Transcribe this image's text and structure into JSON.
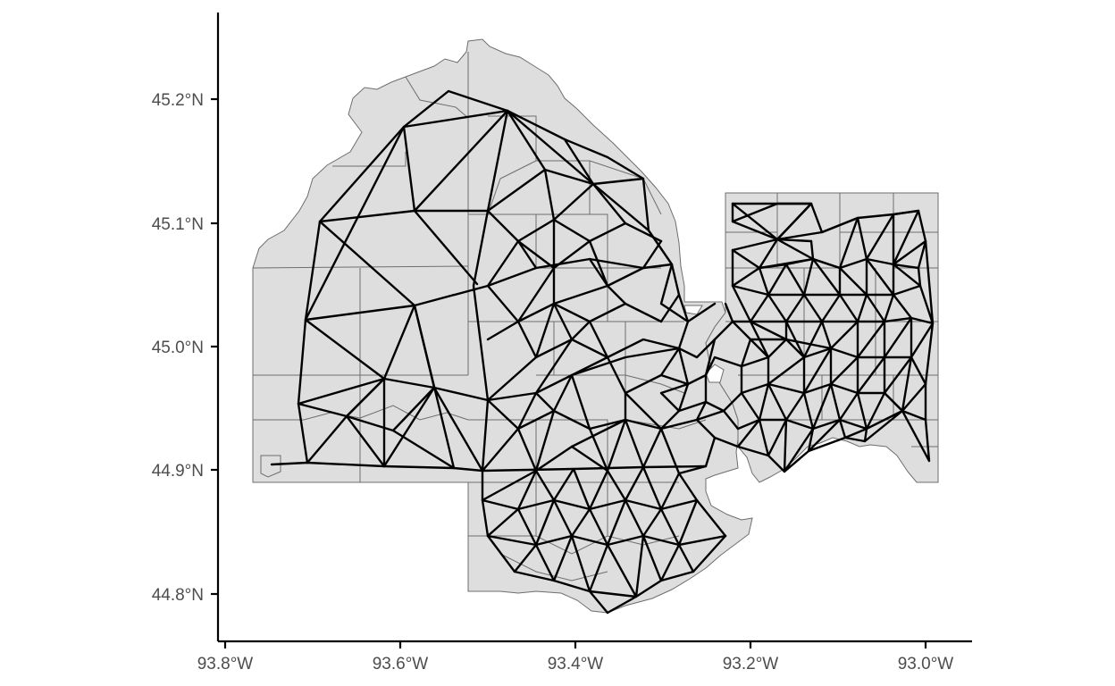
{
  "map": {
    "x_axis_labels": [
      "93.8°W",
      "93.6°W",
      "93.4°W",
      "93.2°W",
      "93.0°W"
    ],
    "y_axis_labels": [
      "45.2°N",
      "45.1°N",
      "45.0°N",
      "44.9°N",
      "44.8°N"
    ],
    "land_color": "#dedede",
    "boundary_color": "#6e6e6e",
    "network_color": "#000000",
    "background_color": "#ffffff",
    "features": [
      "census-tract-polygons",
      "neighbor-network-edges"
    ]
  }
}
